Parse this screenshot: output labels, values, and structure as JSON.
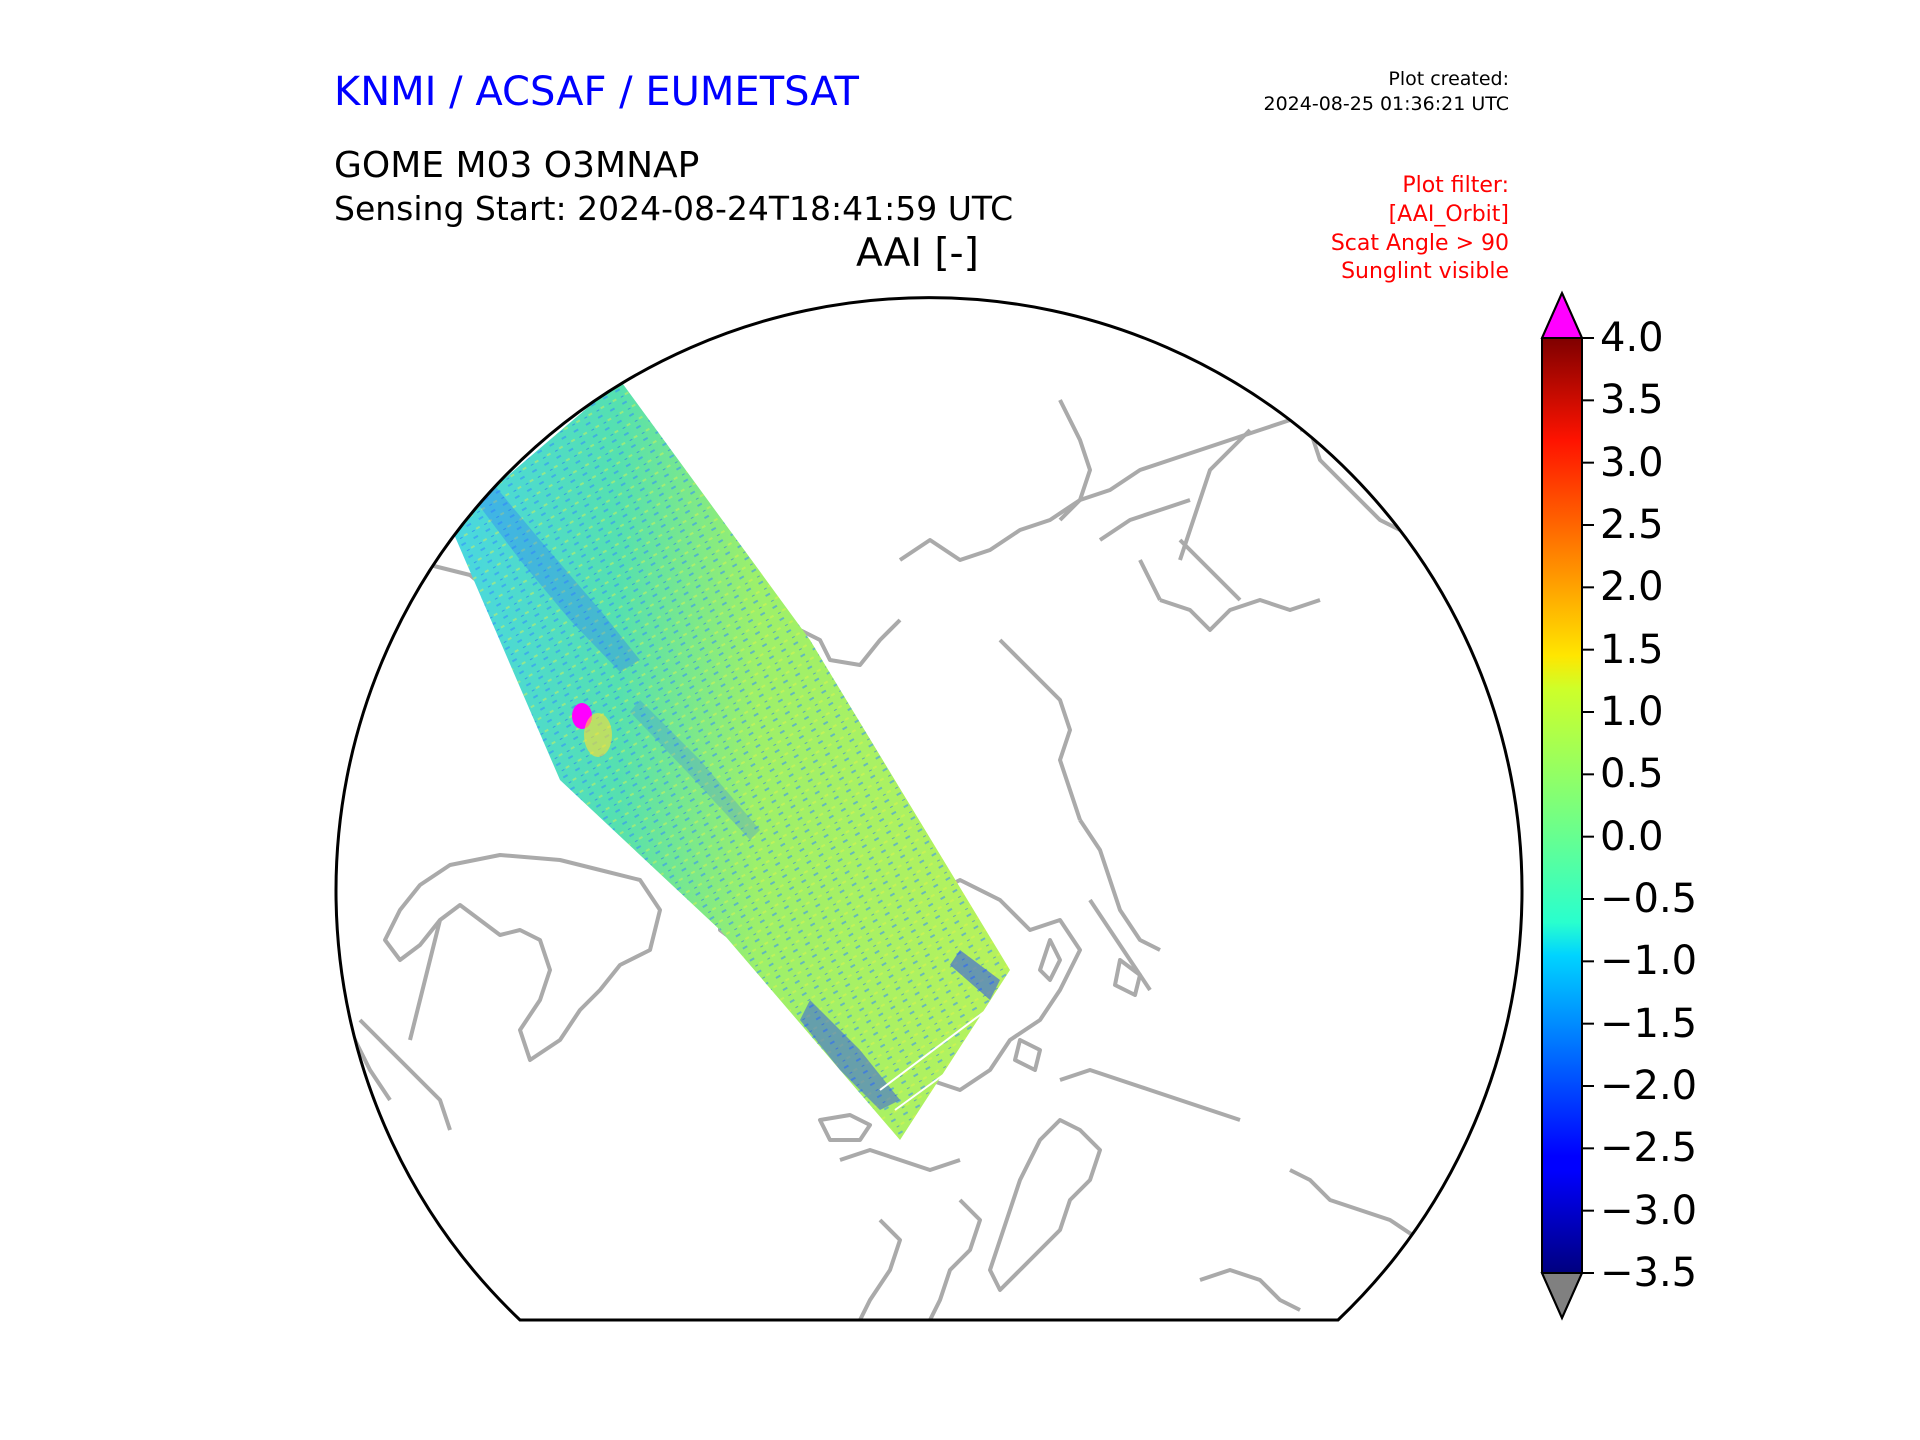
{
  "header": {
    "organisation": "KNMI / ACSAF / EUMETSAT",
    "created_label": "Plot created:",
    "created_time": "2024-08-25 01:36:21 UTC",
    "product": "GOME M03 O3MNAP",
    "sensing_start": "Sensing Start: 2024-08-24T18:41:59 UTC",
    "plot_title": "AAI [-]",
    "filter_lines": [
      "Plot filter:",
      "[AAI_Orbit]",
      "Scat Angle > 90",
      "Sunglint visible"
    ]
  },
  "map": {
    "projection": "north-polar stereographic",
    "coastline_color": "#aaaaaa",
    "swath_dominant_colors": [
      "#3fd6d0",
      "#a8f55a",
      "#1e6cff"
    ]
  },
  "colorbar": {
    "ticks": [
      "4.0",
      "3.5",
      "3.0",
      "2.5",
      "2.0",
      "1.5",
      "1.0",
      "0.5",
      "0.0",
      "−0.5",
      "−1.0",
      "−1.5",
      "−2.0",
      "−2.5",
      "−3.0",
      "−3.5"
    ],
    "min": -3.5,
    "max": 4.0,
    "over_color": "#ff00ff",
    "under_color": "#808080",
    "colormap": "jet"
  }
}
